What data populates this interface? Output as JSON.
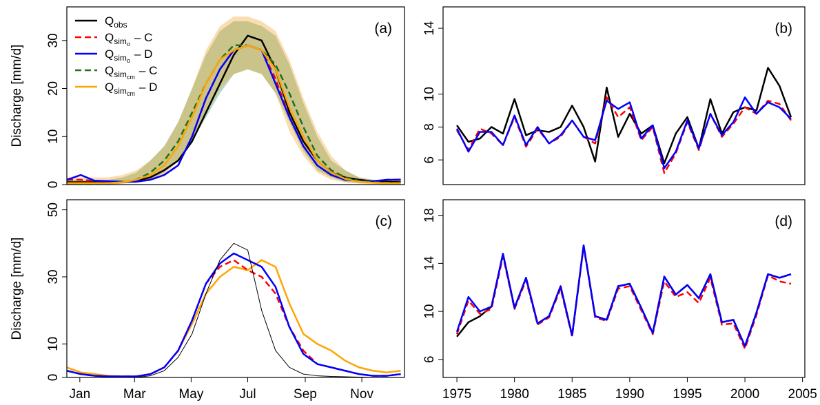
{
  "chart_data": [
    {
      "type": "line",
      "label": "(a)",
      "ylabel": "Discharge [mm/d]",
      "x": [
        1,
        16,
        31,
        46,
        61,
        76,
        91,
        106,
        121,
        136,
        151,
        166,
        181,
        196,
        211,
        226,
        241,
        256,
        271,
        286,
        301,
        316,
        331,
        346,
        361
      ],
      "xlim": [
        1,
        365
      ],
      "ylim": [
        0,
        37
      ],
      "yticks": [
        0,
        10,
        20,
        30
      ],
      "bands": [
        {
          "color": "#2e8b57",
          "lower": [
            0,
            0,
            0,
            0,
            0.2,
            0.5,
            1,
            2.5,
            5,
            9,
            14,
            19,
            23,
            24,
            23,
            19,
            13,
            7,
            3,
            1.5,
            0.5,
            0.3,
            0.2,
            0,
            0
          ],
          "upper": [
            1,
            1,
            1,
            1,
            1.5,
            2.5,
            5,
            8,
            13,
            20,
            27,
            32,
            34,
            34,
            33,
            31,
            25,
            17,
            10,
            5,
            3,
            1.5,
            1,
            1,
            1
          ]
        },
        {
          "color": "#f0a020",
          "lower": [
            0,
            0,
            0,
            0,
            0.2,
            0.5,
            1,
            2,
            5,
            9,
            15,
            20,
            23,
            24,
            23,
            19,
            11,
            6,
            2.5,
            1,
            0.5,
            0.2,
            0,
            0,
            0
          ],
          "upper": [
            1.5,
            1.5,
            1.5,
            1.5,
            2,
            3,
            5,
            8,
            13,
            20,
            28,
            33,
            35,
            35,
            34,
            32,
            26,
            18,
            11,
            6,
            3,
            1.5,
            1,
            1,
            1.5
          ]
        }
      ],
      "legend": true,
      "series": [
        {
          "name": "Q",
          "sub": "obs",
          "color": "#000000",
          "dash": false,
          "values": [
            0.5,
            0.5,
            0.5,
            0.5,
            0.5,
            0.8,
            1.5,
            3,
            5,
            9,
            15,
            21,
            27,
            31,
            30,
            24,
            15,
            9,
            5,
            2.5,
            1.5,
            1,
            0.7,
            0.6,
            0.5
          ]
        },
        {
          "name": "Q",
          "sub": "sim",
          "subsub": "o",
          "suffix": "– C",
          "color": "#ff0000",
          "dash": true,
          "values": [
            1,
            1,
            0.8,
            0.7,
            0.6,
            0.6,
            1,
            2,
            4,
            10,
            18,
            24,
            28,
            29,
            28,
            22,
            14,
            8,
            4,
            2,
            1,
            0.8,
            0.7,
            1,
            1
          ]
        },
        {
          "name": "Q",
          "sub": "sim",
          "subsub": "o",
          "suffix": "– D",
          "color": "#0000ff",
          "dash": false,
          "values": [
            1,
            2,
            0.8,
            0.7,
            0.6,
            0.6,
            1,
            2,
            4,
            10,
            18,
            24,
            28,
            29,
            28,
            21,
            14,
            8,
            4,
            2,
            1,
            0.8,
            0.7,
            1,
            1
          ]
        },
        {
          "name": "Q",
          "sub": "sim",
          "subsub": "cm",
          "suffix": "– C",
          "color": "#1e6e1e",
          "dash": true,
          "values": [
            0.3,
            0.3,
            0.3,
            0.3,
            0.5,
            1,
            2.5,
            5,
            9,
            15,
            21,
            26,
            29,
            29,
            28,
            25,
            19,
            12,
            6,
            3,
            1.5,
            0.8,
            0.5,
            0.4,
            0.3
          ]
        },
        {
          "name": "Q",
          "sub": "sim",
          "subsub": "cm",
          "suffix": "– D",
          "color": "#ffa500",
          "dash": false,
          "values": [
            0.3,
            0.3,
            0.3,
            0.3,
            0.5,
            1,
            2,
            4,
            8,
            14,
            21,
            26,
            28,
            29,
            28,
            24,
            16,
            10,
            5,
            2.5,
            1.2,
            0.6,
            0.4,
            0.3,
            0.3
          ]
        }
      ]
    },
    {
      "type": "line",
      "label": "(b)",
      "x": [
        1975,
        1976,
        1977,
        1978,
        1979,
        1980,
        1981,
        1982,
        1983,
        1984,
        1985,
        1986,
        1987,
        1988,
        1989,
        1990,
        1991,
        1992,
        1993,
        1994,
        1995,
        1996,
        1997,
        1998,
        1999,
        2000,
        2001,
        2002,
        2003,
        2004
      ],
      "xlim": [
        1973.8,
        2005.2
      ],
      "ylim": [
        4.5,
        15.3
      ],
      "yticks": [
        6,
        8,
        10,
        14
      ],
      "series": [
        {
          "color": "#000000",
          "dash": false,
          "values": [
            8.1,
            7.1,
            7.3,
            8.0,
            7.6,
            9.7,
            7.5,
            7.8,
            7.7,
            8.0,
            9.3,
            8.0,
            5.9,
            10.4,
            7.4,
            8.8,
            7.6,
            8.1,
            5.8,
            7.6,
            8.6,
            6.7,
            9.7,
            7.6,
            8.9,
            9.2,
            9.0,
            11.6,
            10.5,
            8.6
          ]
        },
        {
          "color": "#ff0000",
          "dash": true,
          "values": [
            7.8,
            6.6,
            7.9,
            7.6,
            6.9,
            8.6,
            6.8,
            7.9,
            7.0,
            7.4,
            8.4,
            7.4,
            7.0,
            9.8,
            8.6,
            9.2,
            7.2,
            8.0,
            5.2,
            6.4,
            8.3,
            6.6,
            8.8,
            7.4,
            8.2,
            9.2,
            8.8,
            9.6,
            9.4,
            8.4
          ]
        },
        {
          "color": "#0000ff",
          "dash": false,
          "values": [
            7.9,
            6.5,
            7.7,
            7.7,
            6.9,
            8.7,
            6.9,
            8.0,
            7.0,
            7.5,
            8.4,
            7.4,
            7.2,
            9.6,
            9.1,
            9.5,
            7.3,
            8.1,
            5.5,
            6.5,
            8.4,
            6.7,
            8.8,
            7.5,
            8.3,
            9.8,
            8.8,
            9.5,
            9.2,
            8.5
          ]
        }
      ]
    },
    {
      "type": "line",
      "label": "(c)",
      "ylabel": "Discharge [mm/d]",
      "x": [
        1,
        16,
        31,
        46,
        61,
        76,
        91,
        106,
        121,
        136,
        151,
        166,
        181,
        196,
        211,
        226,
        241,
        256,
        271,
        286,
        301,
        316,
        331,
        346,
        361
      ],
      "xlim": [
        1,
        365
      ],
      "ylim": [
        0,
        53
      ],
      "yticks": [
        0,
        10,
        30,
        50
      ],
      "xticks": [
        {
          "value": 15,
          "label": "Jan"
        },
        {
          "value": 74,
          "label": "Mar"
        },
        {
          "value": 135,
          "label": "May"
        },
        {
          "value": 196,
          "label": "Jul"
        },
        {
          "value": 258,
          "label": "Sep"
        },
        {
          "value": 319,
          "label": "Nov"
        }
      ],
      "series": [
        {
          "color": "#ffa500",
          "dash": false,
          "width": 2.5,
          "values": [
            3,
            1.5,
            1,
            0.5,
            0.3,
            0.3,
            1,
            3,
            8,
            16,
            25,
            30,
            33,
            32,
            35,
            33,
            22,
            13,
            10,
            8,
            5,
            3,
            2,
            1.5,
            2
          ]
        },
        {
          "color": "#ff0000",
          "dash": true,
          "width": 2.5,
          "values": [
            2,
            1,
            0.5,
            0.3,
            0.3,
            0.3,
            1,
            3,
            8,
            17,
            28,
            33,
            35,
            32,
            30,
            25,
            15,
            8,
            4,
            3,
            2,
            1,
            0.5,
            0.5,
            1
          ]
        },
        {
          "color": "#0000ff",
          "dash": false,
          "width": 2.5,
          "values": [
            2,
            1,
            0.5,
            0.3,
            0.3,
            0.3,
            1,
            3,
            8,
            17,
            28,
            34,
            37,
            35,
            33,
            27,
            15,
            7,
            4,
            3,
            2,
            1,
            0.5,
            0.5,
            1
          ]
        },
        {
          "color": "#000000",
          "dash": false,
          "width": 1,
          "values": [
            0,
            0,
            0,
            0,
            0,
            0,
            0.5,
            2,
            6,
            13,
            25,
            35,
            40,
            38,
            20,
            8,
            3,
            1,
            0.5,
            0.3,
            0.2,
            0.1,
            0,
            0,
            0
          ]
        }
      ]
    },
    {
      "type": "line",
      "label": "(d)",
      "x": [
        1975,
        1976,
        1977,
        1978,
        1979,
        1980,
        1981,
        1982,
        1983,
        1984,
        1985,
        1986,
        1987,
        1988,
        1989,
        1990,
        1991,
        1992,
        1993,
        1994,
        1995,
        1996,
        1997,
        1998,
        1999,
        2000,
        2001,
        2002,
        2003,
        2004
      ],
      "xlim": [
        1973.8,
        2005.2
      ],
      "ylim": [
        4.5,
        19.3
      ],
      "yticks": [
        6,
        10,
        14,
        18
      ],
      "xticks": [
        1975,
        1980,
        1985,
        1990,
        1995,
        2000,
        2005
      ],
      "series": [
        {
          "color": "#000000",
          "dash": false,
          "values": [
            7.9,
            9.1,
            9.6,
            10.4,
            14.8,
            10.3,
            12.8,
            9.0,
            9.6,
            12.1,
            8.0,
            15.5,
            9.6,
            9.3,
            12.1,
            12.3,
            10.3,
            8.2,
            12.9,
            11.4,
            12.2,
            11.1,
            13.1,
            9.1,
            9.3,
            7.1,
            9.9,
            13.1,
            12.8,
            13.1
          ]
        },
        {
          "color": "#ff0000",
          "dash": true,
          "values": [
            8.1,
            10.9,
            9.8,
            10.2,
            14.6,
            10.2,
            12.6,
            8.9,
            9.5,
            11.9,
            7.9,
            15.4,
            9.5,
            9.2,
            11.9,
            12.1,
            10.1,
            8.1,
            12.5,
            11.2,
            11.6,
            10.7,
            12.8,
            8.9,
            9.0,
            6.9,
            9.7,
            13.0,
            12.5,
            12.3
          ]
        },
        {
          "color": "#0000ff",
          "dash": false,
          "values": [
            8.3,
            11.2,
            10.0,
            10.4,
            14.8,
            10.3,
            12.8,
            9.0,
            9.6,
            12.1,
            8.0,
            15.5,
            9.6,
            9.3,
            12.1,
            12.3,
            10.3,
            8.2,
            12.9,
            11.4,
            12.2,
            11.1,
            13.1,
            9.1,
            9.3,
            7.1,
            9.9,
            13.1,
            12.8,
            13.1
          ]
        }
      ]
    }
  ]
}
